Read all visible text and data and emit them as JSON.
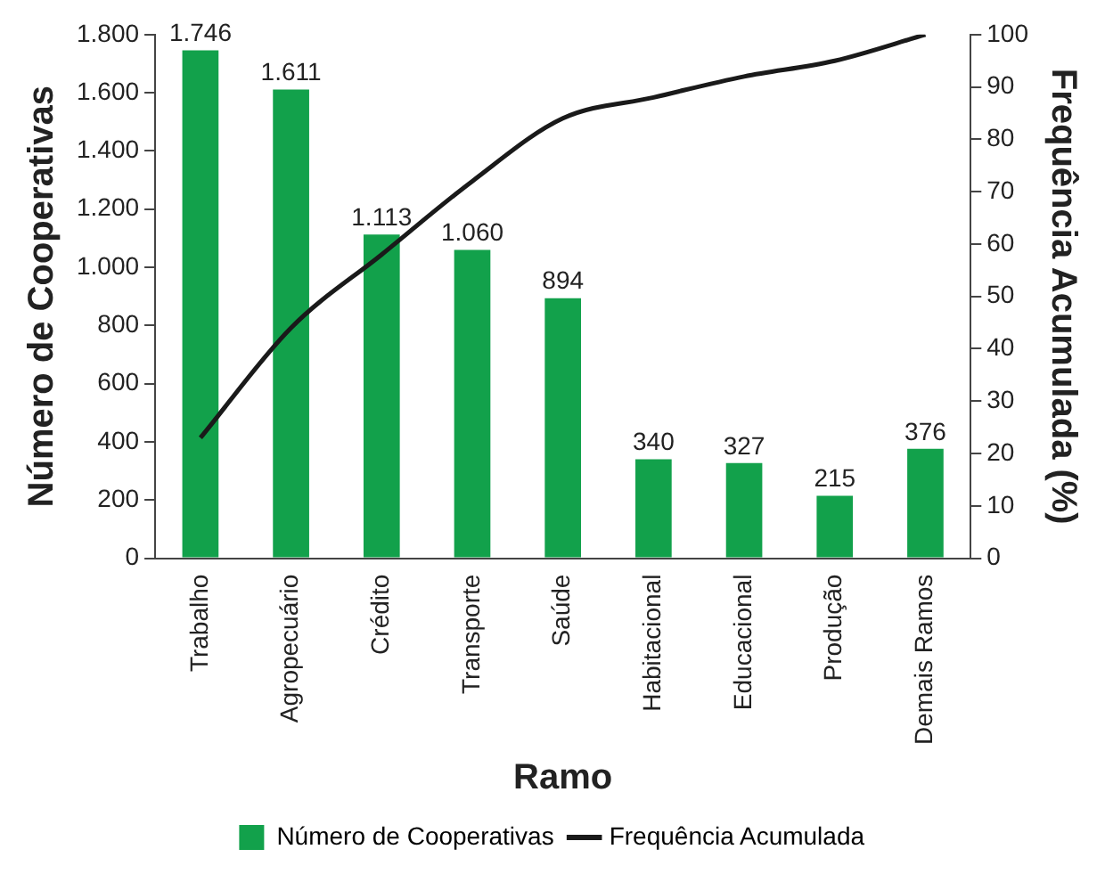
{
  "chart_data": {
    "type": "bar",
    "xlabel": "Ramo",
    "ylabel": "Número de Cooperativas",
    "y2label": "Frequência Acumulada (%)",
    "categories": [
      "Trabalho",
      "Agropecuário",
      "Crédito",
      "Transporte",
      "Saúde",
      "Habitacional",
      "Educacional",
      "Produção",
      "Demais Ramos"
    ],
    "series": [
      {
        "name": "Número de Cooperativas",
        "color": "#12a14b",
        "values": [
          1746,
          1611,
          1113,
          1060,
          894,
          340,
          327,
          215,
          376
        ],
        "value_labels": [
          "1.746",
          "1.611",
          "1.113",
          "1.060",
          "894",
          "340",
          "327",
          "215",
          "376"
        ]
      },
      {
        "name": "Frequência Acumulada",
        "type": "line",
        "axis": "y2",
        "color": "#1a1a1a",
        "values": [
          23,
          44,
          58,
          72,
          84,
          88,
          92,
          95,
          100
        ]
      }
    ],
    "ylim": [
      0,
      1800
    ],
    "yticks": [
      0,
      200,
      400,
      600,
      800,
      {
        "value": 1000,
        "label": "1.000"
      },
      {
        "value": 1200,
        "label": "1.200"
      },
      {
        "value": 1400,
        "label": "1.400"
      },
      {
        "value": 1600,
        "label": "1.600"
      },
      {
        "value": 1800,
        "label": "1.800"
      }
    ],
    "y2lim": [
      0,
      100
    ],
    "y2ticks": [
      0,
      10,
      20,
      30,
      40,
      50,
      60,
      70,
      80,
      90,
      100
    ],
    "grid": false,
    "legend": "bottom",
    "marker": "none",
    "line_style": "solid"
  }
}
